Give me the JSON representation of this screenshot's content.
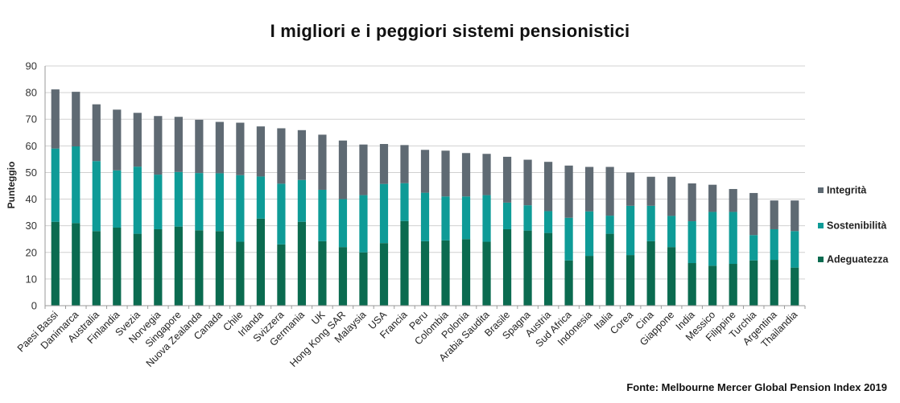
{
  "chart_data": {
    "type": "bar",
    "stacked": true,
    "title": "I migliori e i peggiori sistemi pensionistici",
    "ylabel": "Punteggio",
    "xlabel": "",
    "ylim": [
      0,
      90
    ],
    "yticks": [
      0,
      10,
      20,
      30,
      40,
      50,
      60,
      70,
      80,
      90
    ],
    "grid": true,
    "legend_position": "right",
    "categories": [
      "Paesi Bassi",
      "Danimarca",
      "Australia",
      "Finlandia",
      "Svezia",
      "Norvegia",
      "Singapore",
      "Nuova Zealanda",
      "Canada",
      "Chile",
      "Irlanda",
      "Svizzera",
      "Germania",
      "UK",
      "Hong Kong SAR",
      "Malaysia",
      "USA",
      "Francia",
      "Peru",
      "Colombia",
      "Polonia",
      "Arabia Saudita",
      "Brasile",
      "Spagna",
      "Austria",
      "Sud Africa",
      "Indonesia",
      "Italia",
      "Corea",
      "Cina",
      "Giappone",
      "India",
      "Messico",
      "Filippine",
      "Turchia",
      "Argentina",
      "Thailandia"
    ],
    "series": [
      {
        "name": "Adeguatezza",
        "color": "#0b6b50",
        "values": [
          31.5,
          31,
          28,
          29.3,
          27,
          28.7,
          29.7,
          28.3,
          28,
          24,
          32.7,
          23,
          31.5,
          24.2,
          22,
          20,
          23.5,
          31.8,
          24.2,
          24.5,
          25,
          24,
          28.7,
          28.2,
          27.3,
          17,
          18.7,
          27,
          19,
          24.2,
          22,
          16,
          15,
          15.7,
          17,
          17.2,
          14.3
        ]
      },
      {
        "name": "Sostenibilità",
        "color": "#0e9b97",
        "values": [
          27.5,
          28.8,
          26.3,
          21.5,
          25.2,
          20.5,
          20.5,
          21.5,
          21.7,
          25,
          15.8,
          22.8,
          15.7,
          19.3,
          18,
          21.5,
          22.2,
          14.2,
          18.2,
          16.5,
          16,
          17.5,
          10,
          9.5,
          8.2,
          16,
          16.7,
          6.8,
          18.5,
          13.3,
          11.7,
          15.7,
          20.2,
          19.5,
          9.5,
          11.5,
          13.7
        ]
      },
      {
        "name": "Integrità",
        "color": "#5f6a73",
        "values": [
          22.2,
          20.5,
          21.3,
          22.8,
          20.2,
          22,
          20.7,
          20,
          19.3,
          19.7,
          18.8,
          20.8,
          18.7,
          20.7,
          22,
          19,
          15,
          14.3,
          16.1,
          17.2,
          16.3,
          15.5,
          17.2,
          17.1,
          18.5,
          19.6,
          16.7,
          18.3,
          12.5,
          10.9,
          14.7,
          14.2,
          10.2,
          8.6,
          15.8,
          10.8,
          11.5
        ]
      }
    ]
  },
  "source": "Fonte: Melbourne Mercer Global Pension Index 2019"
}
